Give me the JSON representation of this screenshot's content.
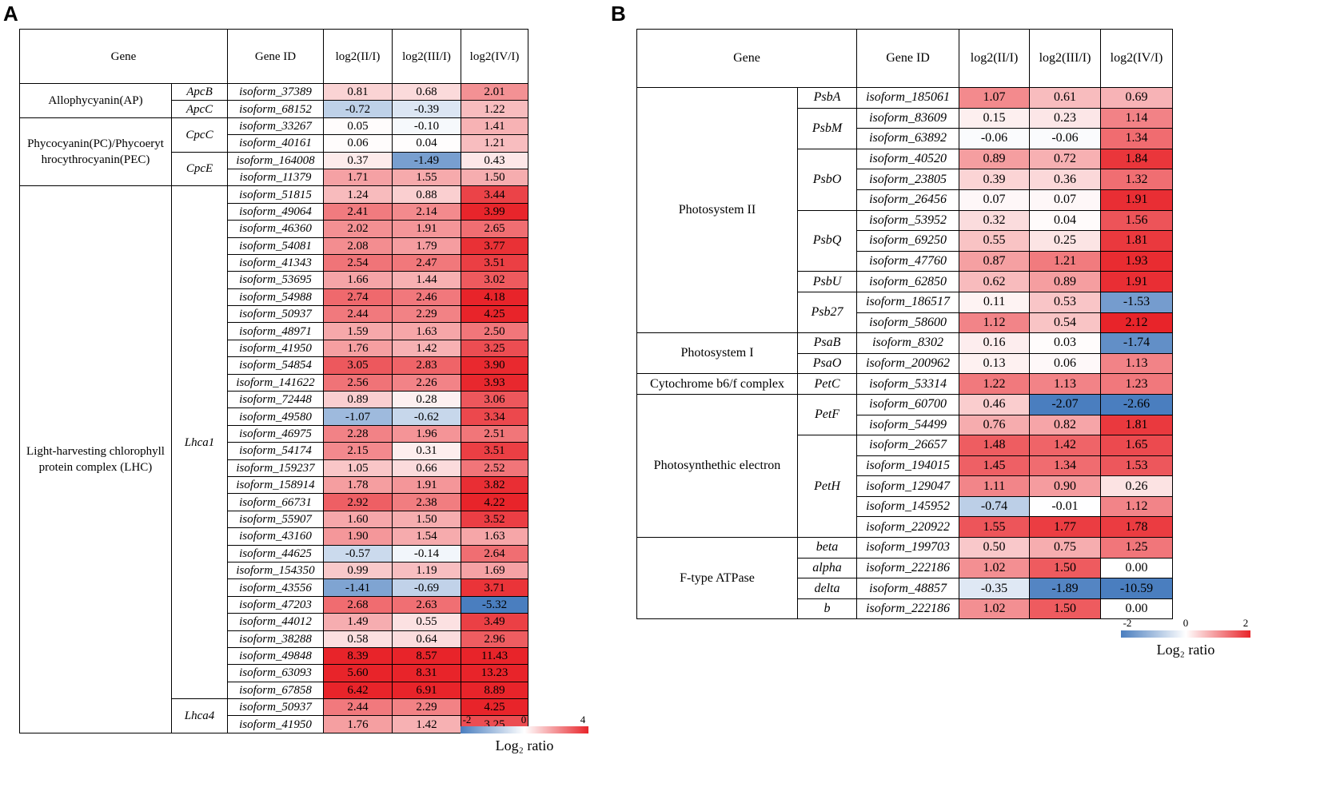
{
  "panel_a": {
    "label": "A",
    "headers": {
      "gene": "Gene",
      "gene_id": "Gene ID",
      "c1": "log2(II/I)",
      "c2": "log2(III/I)",
      "c3": "log2(IV/I)"
    },
    "groups": [
      {
        "name": "Allophycyanin(AP)",
        "subs": [
          {
            "symbol": "ApcB",
            "rows": [
              [
                "isoform_37389",
                "0.81",
                "0.68",
                "2.01"
              ]
            ]
          },
          {
            "symbol": "ApcC",
            "rows": [
              [
                "isoform_68152",
                "-0.72",
                "-0.39",
                "1.22"
              ]
            ]
          }
        ]
      },
      {
        "name": "Phycocyanin(PC)/Phycoeryt hrocythrocyanin(PEC)",
        "subs": [
          {
            "symbol": "CpcC",
            "rows": [
              [
                "isoform_33267",
                "0.05",
                "-0.10",
                "1.41"
              ],
              [
                "isoform_40161",
                "0.06",
                "0.04",
                "1.21"
              ]
            ]
          },
          {
            "symbol": "CpcE",
            "rows": [
              [
                "isoform_164008",
                "0.37",
                "-1.49",
                "0.43"
              ],
              [
                "isoform_11379",
                "1.71",
                "1.55",
                "1.50"
              ]
            ]
          }
        ]
      },
      {
        "name": "Light-harvesting chlorophyll protein complex (LHC)",
        "subs": [
          {
            "symbol": "Lhca1",
            "rows": [
              [
                "isoform_51815",
                "1.24",
                "0.88",
                "3.44"
              ],
              [
                "isoform_49064",
                "2.41",
                "2.14",
                "3.99"
              ],
              [
                "isoform_46360",
                "2.02",
                "1.91",
                "2.65"
              ],
              [
                "isoform_54081",
                "2.08",
                "1.79",
                "3.77"
              ],
              [
                "isoform_41343",
                "2.54",
                "2.47",
                "3.51"
              ],
              [
                "isoform_53695",
                "1.66",
                "1.44",
                "3.02"
              ],
              [
                "isoform_54988",
                "2.74",
                "2.46",
                "4.18"
              ],
              [
                "isoform_50937",
                "2.44",
                "2.29",
                "4.25"
              ],
              [
                "isoform_48971",
                "1.59",
                "1.63",
                "2.50"
              ],
              [
                "isoform_41950",
                "1.76",
                "1.42",
                "3.25"
              ],
              [
                "isoform_54854",
                "3.05",
                "2.83",
                "3.90"
              ],
              [
                "isoform_141622",
                "2.56",
                "2.26",
                "3.93"
              ],
              [
                "isoform_72448",
                "0.89",
                "0.28",
                "3.06"
              ],
              [
                "isoform_49580",
                "-1.07",
                "-0.62",
                "3.34"
              ],
              [
                "isoform_46975",
                "2.28",
                "1.96",
                "2.51"
              ],
              [
                "isoform_54174",
                "2.15",
                "0.31",
                "3.51"
              ],
              [
                "isoform_159237",
                "1.05",
                "0.66",
                "2.52"
              ],
              [
                "isoform_158914",
                "1.78",
                "1.91",
                "3.82"
              ],
              [
                "isoform_66731",
                "2.92",
                "2.38",
                "4.22"
              ],
              [
                "isoform_55907",
                "1.60",
                "1.50",
                "3.52"
              ],
              [
                "isoform_43160",
                "1.90",
                "1.54",
                "1.63"
              ],
              [
                "isoform_44625",
                "-0.57",
                "-0.14",
                "2.64"
              ],
              [
                "isoform_154350",
                "0.99",
                "1.19",
                "1.69"
              ],
              [
                "isoform_43556",
                "-1.41",
                "-0.69",
                "3.71"
              ],
              [
                "isoform_47203",
                "2.68",
                "2.63",
                "-5.32"
              ],
              [
                "isoform_44012",
                "1.49",
                "0.55",
                "3.49"
              ],
              [
                "isoform_38288",
                "0.58",
                "0.64",
                "2.96"
              ],
              [
                "isoform_49848",
                "8.39",
                "8.57",
                "11.43"
              ],
              [
                "isoform_63093",
                "5.60",
                "8.31",
                "13.23"
              ],
              [
                "isoform_67858",
                "6.42",
                "6.91",
                "8.89"
              ]
            ]
          },
          {
            "symbol": "Lhca4",
            "rows": [
              [
                "isoform_50937",
                "2.44",
                "2.29",
                "4.25"
              ],
              [
                "isoform_41950",
                "1.76",
                "1.42",
                "3.25"
              ]
            ]
          }
        ]
      }
    ],
    "legend": {
      "min": -2,
      "max": 4,
      "ticks": [
        "-2",
        "0",
        "4"
      ],
      "title": "Log₂ ratio"
    }
  },
  "panel_b": {
    "label": "B",
    "headers": {
      "gene": "Gene",
      "gene_id": "Gene ID",
      "c1": "log2(II/I)",
      "c2": "log2(III/I)",
      "c3": "log2(IV/I)"
    },
    "groups": [
      {
        "name": "Photosystem II",
        "subs": [
          {
            "symbol": "PsbA",
            "rows": [
              [
                "isoform_185061",
                "1.07",
                "0.61",
                "0.69"
              ]
            ]
          },
          {
            "symbol": "PsbM",
            "rows": [
              [
                "isoform_83609",
                "0.15",
                "0.23",
                "1.14"
              ],
              [
                "isoform_63892",
                "-0.06",
                "-0.06",
                "1.34"
              ]
            ]
          },
          {
            "symbol": "PsbO",
            "rows": [
              [
                "isoform_40520",
                "0.89",
                "0.72",
                "1.84"
              ],
              [
                "isoform_23805",
                "0.39",
                "0.36",
                "1.32"
              ],
              [
                "isoform_26456",
                "0.07",
                "0.07",
                "1.91"
              ]
            ]
          },
          {
            "symbol": "PsbQ",
            "rows": [
              [
                "isoform_53952",
                "0.32",
                "0.04",
                "1.56"
              ],
              [
                "isoform_69250",
                "0.55",
                "0.25",
                "1.81"
              ],
              [
                "isoform_47760",
                "0.87",
                "1.21",
                "1.93"
              ]
            ]
          },
          {
            "symbol": "PsbU",
            "rows": [
              [
                "isoform_62850",
                "0.62",
                "0.89",
                "1.91"
              ]
            ]
          },
          {
            "symbol": "Psb27",
            "rows": [
              [
                "isoform_186517",
                "0.11",
                "0.53",
                "-1.53"
              ],
              [
                "isoform_58600",
                "1.12",
                "0.54",
                "2.12"
              ]
            ]
          }
        ]
      },
      {
        "name": "Photosystem I",
        "subs": [
          {
            "symbol": "PsaB",
            "rows": [
              [
                "isoform_8302",
                "0.16",
                "0.03",
                "-1.74"
              ]
            ]
          },
          {
            "symbol": "PsaO",
            "rows": [
              [
                "isoform_200962",
                "0.13",
                "0.06",
                "1.13"
              ]
            ]
          }
        ]
      },
      {
        "name": "Cytochrome b6/f complex",
        "subs": [
          {
            "symbol": "PetC",
            "rows": [
              [
                "isoform_53314",
                "1.22",
                "1.13",
                "1.23"
              ]
            ]
          }
        ]
      },
      {
        "name": "Photosynthethic electron",
        "subs": [
          {
            "symbol": "PetF",
            "rows": [
              [
                "isoform_60700",
                "0.46",
                "-2.07",
                "-2.66"
              ],
              [
                "isoform_54499",
                "0.76",
                "0.82",
                "1.81"
              ]
            ]
          },
          {
            "symbol": "PetH",
            "rows": [
              [
                "isoform_26657",
                "1.48",
                "1.42",
                "1.65"
              ],
              [
                "isoform_194015",
                "1.45",
                "1.34",
                "1.53"
              ],
              [
                "isoform_129047",
                "1.11",
                "0.90",
                "0.26"
              ],
              [
                "isoform_145952",
                "-0.74",
                "-0.01",
                "1.12"
              ],
              [
                "isoform_220922",
                "1.55",
                "1.77",
                "1.78"
              ]
            ]
          }
        ]
      },
      {
        "name": "F-type ATPase",
        "subs": [
          {
            "symbol": "beta",
            "rows": [
              [
                "isoform_199703",
                "0.50",
                "0.75",
                "1.25"
              ]
            ]
          },
          {
            "symbol": "alpha",
            "rows": [
              [
                "isoform_222186",
                "1.02",
                "1.50",
                "0.00"
              ]
            ]
          },
          {
            "symbol": "delta",
            "rows": [
              [
                "isoform_48857",
                "-0.35",
                "-1.89",
                "-10.59"
              ]
            ]
          },
          {
            "symbol": "b",
            "rows": [
              [
                "isoform_222186",
                "1.02",
                "1.50",
                "0.00"
              ]
            ]
          }
        ]
      }
    ],
    "legend": {
      "min": -2,
      "max": 2,
      "ticks": [
        "-2",
        "0",
        "2"
      ],
      "title": "Log₂ ratio"
    }
  },
  "colors": {
    "neg": "#4a7ebf",
    "zero": "#ffffff",
    "pos": "#e8242a"
  },
  "chart_data": [
    {
      "type": "heatmap",
      "title": "A",
      "columns": [
        "log2(II/I)",
        "log2(III/I)",
        "log2(IV/I)"
      ],
      "color_scale": {
        "min": -2,
        "mid": 0,
        "max": 4,
        "label": "Log₂ ratio"
      }
    },
    {
      "type": "heatmap",
      "title": "B",
      "columns": [
        "log2(II/I)",
        "log2(III/I)",
        "log2(IV/I)"
      ],
      "color_scale": {
        "min": -2,
        "mid": 0,
        "max": 2,
        "label": "Log₂ ratio"
      }
    }
  ]
}
